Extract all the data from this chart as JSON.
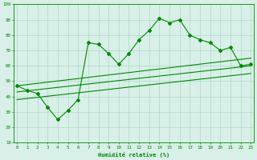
{
  "x": [
    0,
    1,
    2,
    3,
    4,
    5,
    6,
    7,
    8,
    9,
    10,
    11,
    12,
    13,
    14,
    15,
    16,
    17,
    18,
    19,
    20,
    21,
    22,
    23
  ],
  "y": [
    47,
    44,
    42,
    33,
    25,
    31,
    38,
    75,
    74,
    68,
    61,
    68,
    77,
    83,
    91,
    88,
    90,
    80,
    77,
    75,
    70,
    72,
    60,
    61
  ],
  "trend1_x": [
    0,
    23
  ],
  "trend1_y": [
    47,
    65
  ],
  "trend2_x": [
    0,
    23
  ],
  "trend2_y": [
    43,
    60
  ],
  "trend3_x": [
    0,
    23
  ],
  "trend3_y": [
    38,
    55
  ],
  "xlim": [
    -0.3,
    23.3
  ],
  "ylim": [
    10,
    100
  ],
  "yticks": [
    10,
    20,
    30,
    40,
    50,
    60,
    70,
    80,
    90,
    100
  ],
  "xticks": [
    0,
    1,
    2,
    3,
    4,
    5,
    6,
    7,
    8,
    9,
    10,
    11,
    12,
    13,
    14,
    15,
    16,
    17,
    18,
    19,
    20,
    21,
    22,
    23
  ],
  "xlabel": "Humidité relative (%)",
  "line_color": "#008800",
  "bg_color": "#d8f0e8",
  "grid_color": "#b0d8c8",
  "xlabel_color": "#008800",
  "tick_color": "#008800"
}
